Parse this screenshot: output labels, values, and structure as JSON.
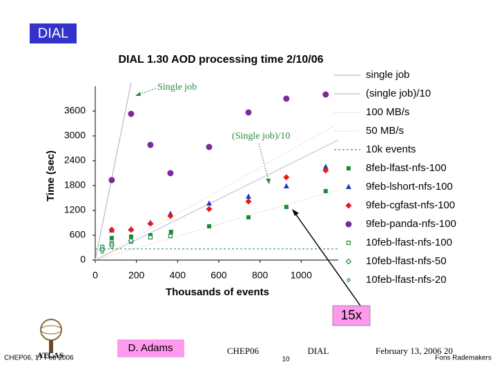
{
  "slide": {
    "badge": "DIAL",
    "callout": "15x",
    "author": "D. Adams",
    "logo": "ATLAS",
    "footer_left": "CHEP06, 17 Feb 2006",
    "footer_conf": "CHEP06",
    "footer_topic": "DIAL",
    "footer_date": "February 13, 2006 20",
    "page_number": "10",
    "footer_right": "Fons Rademakers"
  },
  "chart_data": {
    "type": "scatter",
    "title": "DIAL 1.30 AOD processing time 2/10/06",
    "x_label": "Thousands of events",
    "y_label": "Time (sec)",
    "xlim": [
      0,
      1180
    ],
    "ylim": [
      0,
      4200
    ],
    "xticks": [
      0,
      200,
      400,
      600,
      800,
      1000
    ],
    "yticks": [
      0,
      600,
      1200,
      1800,
      2400,
      3000,
      3600
    ],
    "annotations": [
      "Single job",
      "(Single job)/10"
    ],
    "series": [
      {
        "name": "single job",
        "color": "#b8b8c8",
        "marker": "none",
        "dash": "solid",
        "x": [
          0,
          174
        ],
        "values": [
          0,
          4283
        ]
      },
      {
        "name": "(single job)/10",
        "color": "#c8c0d8",
        "marker": "none",
        "dash": "solid",
        "x": [
          0,
          1180
        ],
        "values": [
          0,
          2900
        ]
      },
      {
        "name": "100 MB/s",
        "color": "#e8c8a0",
        "marker": "none",
        "dash": "dotted",
        "x": [
          0,
          1180
        ],
        "values": [
          0,
          1700
        ]
      },
      {
        "name": "50 MB/s",
        "color": "#e0d0a8",
        "marker": "none",
        "dash": "dotted",
        "x": [
          0,
          1180
        ],
        "values": [
          0,
          3300
        ]
      },
      {
        "name": "10k events",
        "color": "#3a8a8a",
        "marker": "none",
        "dash": "dashed",
        "x": [
          0,
          1180
        ],
        "values": [
          270,
          270
        ]
      },
      {
        "name": "8feb-lfast-nfs-100",
        "color": "#1a8a3a",
        "marker": "square",
        "x": [
          80,
          174,
          268,
          368,
          553,
          744,
          928,
          1119
        ],
        "values": [
          533,
          567,
          600,
          683,
          817,
          1033,
          1283,
          1667
        ]
      },
      {
        "name": "9feb-lshort-nfs-100",
        "color": "#1a3ac8",
        "marker": "triangle",
        "x": [
          80,
          174,
          268,
          365,
          553,
          744,
          928,
          1119
        ],
        "values": [
          717,
          750,
          900,
          1117,
          1367,
          1533,
          1783,
          2250
        ]
      },
      {
        "name": "9feb-cgfast-nfs-100",
        "color": "#e81818",
        "marker": "diamond",
        "x": [
          80,
          174,
          268,
          365,
          553,
          744,
          928,
          1119
        ],
        "values": [
          733,
          733,
          883,
          1067,
          1233,
          1417,
          2000,
          2167
        ]
      },
      {
        "name": "9feb-panda-nfs-100",
        "color": "#7a2a9a",
        "marker": "circle",
        "x": [
          80,
          174,
          268,
          365,
          553,
          744,
          928,
          1119
        ],
        "values": [
          1933,
          3533,
          2783,
          2100,
          2733,
          3567,
          3900,
          4000
        ]
      },
      {
        "name": "10feb-lfast-nfs-100",
        "color": "#1a8a3a",
        "marker": "open-square",
        "x": [
          34,
          80,
          174,
          268,
          365
        ],
        "values": [
          317,
          417,
          450,
          550,
          583
        ]
      },
      {
        "name": "10feb-lfast-nfs-50",
        "color": "#1a8a3a",
        "marker": "open-diamond",
        "x": [
          34,
          80,
          174
        ],
        "values": [
          250,
          367,
          467
        ]
      },
      {
        "name": "10feb-lfast-nfs-20",
        "color": "#1a8a3a",
        "marker": "open-circle",
        "x": [
          34,
          80
        ],
        "values": [
          200,
          317
        ]
      }
    ]
  }
}
